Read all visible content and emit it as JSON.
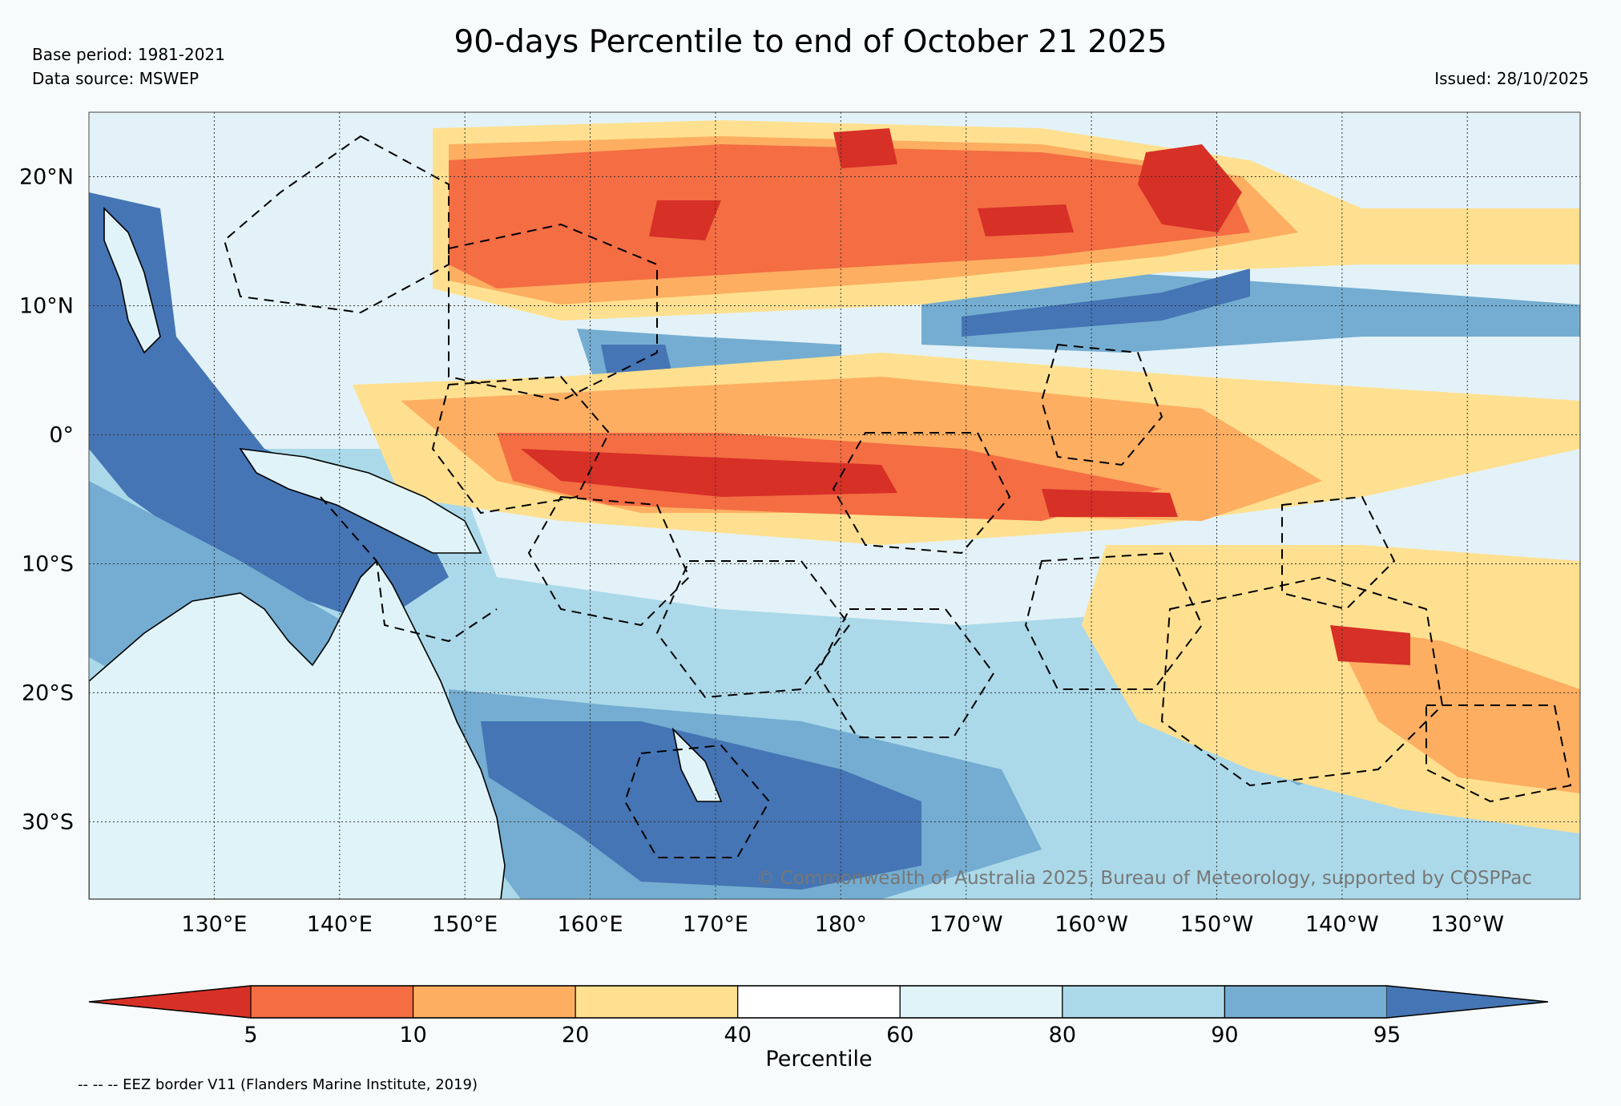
{
  "title": "90-days Percentile to end of October 21 2025",
  "header": {
    "base_period": "Base period: 1981-2021",
    "data_source": "Data source: MSWEP",
    "issued": "Issued: 28/10/2025"
  },
  "map": {
    "extent": {
      "lon_min": 120,
      "lon_max": 239,
      "lat_min": -36,
      "lat_max": 25
    },
    "lat_labels": [
      {
        "lat": 20,
        "label": "20°N"
      },
      {
        "lat": 10,
        "label": "10°N"
      },
      {
        "lat": 0,
        "label": "0°"
      },
      {
        "lat": -10,
        "label": "10°S"
      },
      {
        "lat": -20,
        "label": "20°S"
      },
      {
        "lat": -30,
        "label": "30°S"
      }
    ],
    "lon_labels": [
      {
        "lon": 130,
        "label": "130°E"
      },
      {
        "lon": 140,
        "label": "140°E"
      },
      {
        "lon": 150,
        "label": "150°E"
      },
      {
        "lon": 160,
        "label": "160°E"
      },
      {
        "lon": 170,
        "label": "170°E"
      },
      {
        "lon": 180,
        "label": "180°"
      },
      {
        "lon": 190,
        "label": "170°W"
      },
      {
        "lon": 200,
        "label": "160°W"
      },
      {
        "lon": 210,
        "label": "150°W"
      },
      {
        "lon": 220,
        "label": "140°W"
      },
      {
        "lon": 230,
        "label": "130°W"
      }
    ],
    "copyright": "© Commonwealth of Australia 2025, Bureau of Meteorology, supported by COSPPac"
  },
  "colorbar": {
    "label": "Percentile",
    "ticks": [
      "5",
      "10",
      "20",
      "40",
      "60",
      "80",
      "90",
      "95"
    ],
    "colors": [
      "#d73027",
      "#f46d43",
      "#fdae61",
      "#fee090",
      "#ffffff",
      "#e0f3f8",
      "#abd9e9",
      "#74add1",
      "#4575b4"
    ]
  },
  "footnote": "-- -- -- EEZ border V11 (Flanders Marine Institute, 2019)"
}
